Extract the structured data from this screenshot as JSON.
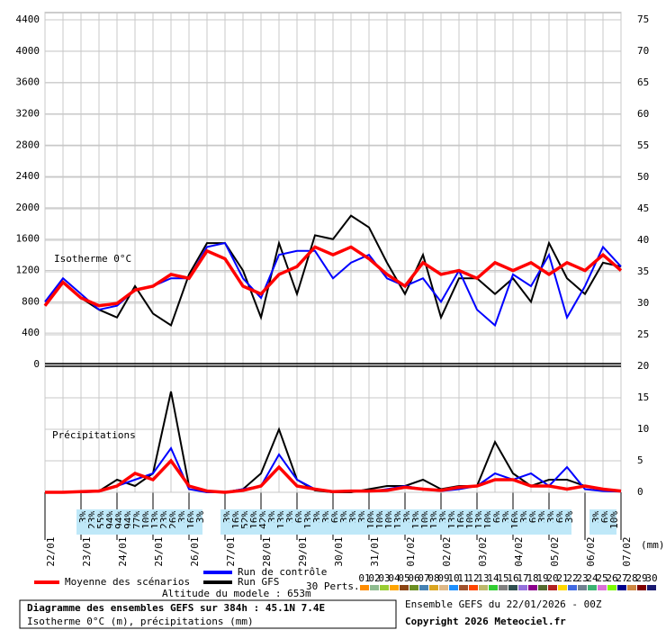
{
  "chart_data": {
    "type": "line",
    "title": "Diagramme des ensembles GEFS sur 384h : 45.1N 7.4E",
    "subtitle": "Isotherme 0°C (m), précipitations (mm)",
    "annotations": {
      "isotherm": "Isotherme 0°C",
      "precip": "Précipitations",
      "altitude": "Altitude du modele : 653m",
      "run": "Ensemble GEFS du 22/01/2026 - 00Z",
      "copyright": "Copyright 2026 Meteociel.fr",
      "y2_unit": "(mm)"
    },
    "categories": [
      "22/01",
      null,
      "23/01",
      null,
      "24/01",
      null,
      "25/01",
      null,
      "26/01",
      null,
      "27/01",
      null,
      "28/01",
      null,
      "29/01",
      null,
      "30/01",
      null,
      "31/01",
      null,
      "01/02",
      null,
      "02/02",
      null,
      "03/02",
      null,
      "04/02",
      null,
      "05/02",
      null,
      "06/02",
      null,
      "07/02"
    ],
    "ylim": [
      0,
      4400
    ],
    "yticks": [
      0,
      400,
      800,
      1200,
      1600,
      2000,
      2400,
      2800,
      3200,
      3600,
      4000,
      4400
    ],
    "y2lim": [
      0,
      75
    ],
    "y2ticks": [
      0,
      5,
      10,
      15,
      20,
      25,
      30,
      35,
      40,
      45,
      50,
      55,
      60,
      65,
      70,
      75
    ],
    "grid": true,
    "series": [
      {
        "name": "Moyenne des scénarios",
        "color": "#ff0000",
        "values": [
          750,
          1050,
          850,
          750,
          780,
          950,
          1000,
          1150,
          1100,
          1450,
          1350,
          1000,
          900,
          1150,
          1250,
          1500,
          1400,
          1500,
          1350,
          1150,
          1000,
          1300,
          1150,
          1200,
          1100,
          1300,
          1200,
          1300,
          1150,
          1300,
          1200,
          1400,
          1200
        ],
        "precip": [
          0,
          0,
          0.1,
          0.2,
          1,
          3,
          2,
          5,
          1,
          0.2,
          0,
          0.3,
          1,
          4,
          1,
          0.5,
          0.1,
          0.2,
          0.2,
          0.3,
          0.8,
          0.5,
          0.3,
          0.8,
          1,
          2,
          2,
          1,
          1,
          0.5,
          1,
          0.5,
          0.2
        ]
      },
      {
        "name": "Run de contrôle",
        "color": "#0000ff",
        "values": [
          800,
          1100,
          900,
          700,
          750,
          950,
          1000,
          1100,
          1100,
          1500,
          1550,
          1100,
          850,
          1400,
          1450,
          1450,
          1100,
          1300,
          1400,
          1100,
          1000,
          1100,
          800,
          1200,
          700,
          500,
          1150,
          1000,
          1400,
          600,
          1000,
          1500,
          1250
        ],
        "precip": [
          0,
          0,
          0,
          0.1,
          1,
          2,
          3,
          7,
          0.5,
          0,
          0,
          0.5,
          1,
          6,
          2,
          0.5,
          0,
          0.2,
          0.1,
          0.5,
          1,
          0.5,
          0.2,
          0.5,
          1,
          3,
          2,
          3,
          1,
          4,
          0.5,
          0.2,
          0.1
        ]
      },
      {
        "name": "Run GFS",
        "color": "#000000",
        "values": [
          750,
          1050,
          850,
          700,
          600,
          1000,
          650,
          500,
          1150,
          1550,
          1550,
          1200,
          600,
          1550,
          900,
          1650,
          1600,
          1900,
          1750,
          1300,
          900,
          1400,
          600,
          1100,
          1100,
          900,
          1100,
          800,
          1550,
          1100,
          900,
          1300,
          1250
        ],
        "precip": [
          0,
          0,
          0,
          0.2,
          2,
          1,
          3,
          16,
          1,
          0,
          0,
          0.5,
          3,
          10,
          2,
          0.3,
          0,
          0,
          0.5,
          1,
          1,
          2,
          0.5,
          1,
          1,
          8,
          3,
          1,
          2,
          2,
          1,
          0.5,
          0.2
        ]
      }
    ],
    "precip_probability": [
      null,
      null,
      null,
      null,
      "3%",
      "23%",
      "55%",
      "94%",
      "94%",
      "94%",
      "77%",
      "10%",
      "13%",
      "23%",
      "26%",
      "3%",
      "16%",
      "3%",
      null,
      null,
      "3%",
      "16%",
      "52%",
      "16%",
      "42%",
      "3%",
      "13%",
      "3%",
      "6%",
      "13%",
      "3%",
      "3%",
      "6%",
      "3%",
      "3%",
      "3%",
      "10%",
      "10%",
      "10%",
      "13%",
      "3%",
      "13%",
      "10%",
      "13%",
      "3%",
      "13%",
      "16%",
      "10%",
      "13%",
      "10%",
      "6%",
      "3%",
      "16%",
      "3%",
      "6%",
      "3%",
      "3%",
      "6%",
      "3%",
      null,
      null,
      "3%",
      "6%",
      "10%",
      null
    ],
    "perturbations": {
      "label": "30 Perts.",
      "items": [
        {
          "name": "01",
          "color": "#ff8c00"
        },
        {
          "name": "02",
          "color": "#8fbc8f"
        },
        {
          "name": "03",
          "color": "#9acd32"
        },
        {
          "name": "04",
          "color": "#ffa500"
        },
        {
          "name": "05",
          "color": "#8b4513"
        },
        {
          "name": "06",
          "color": "#6b8e23"
        },
        {
          "name": "07",
          "color": "#4682b4"
        },
        {
          "name": "08",
          "color": "#daa520"
        },
        {
          "name": "09",
          "color": "#deb887"
        },
        {
          "name": "10",
          "color": "#1e90ff"
        },
        {
          "name": "11",
          "color": "#a0522d"
        },
        {
          "name": "12",
          "color": "#ff4500"
        },
        {
          "name": "13",
          "color": "#bdb76b"
        },
        {
          "name": "14",
          "color": "#32cd32"
        },
        {
          "name": "15",
          "color": "#808080"
        },
        {
          "name": "16",
          "color": "#2f4f4f"
        },
        {
          "name": "17",
          "color": "#9370db"
        },
        {
          "name": "18",
          "color": "#8b008b"
        },
        {
          "name": "19",
          "color": "#556b2f"
        },
        {
          "name": "20",
          "color": "#b22222"
        },
        {
          "name": "21",
          "color": "#ffd700"
        },
        {
          "name": "22",
          "color": "#4169e1"
        },
        {
          "name": "23",
          "color": "#708090"
        },
        {
          "name": "24",
          "color": "#3cb371"
        },
        {
          "name": "25",
          "color": "#da70d6"
        },
        {
          "name": "26",
          "color": "#7cfc00"
        },
        {
          "name": "27",
          "color": "#00008b"
        },
        {
          "name": "28",
          "color": "#cd853f"
        },
        {
          "name": "29",
          "color": "#800000"
        },
        {
          "name": "30",
          "color": "#191970"
        }
      ]
    }
  }
}
